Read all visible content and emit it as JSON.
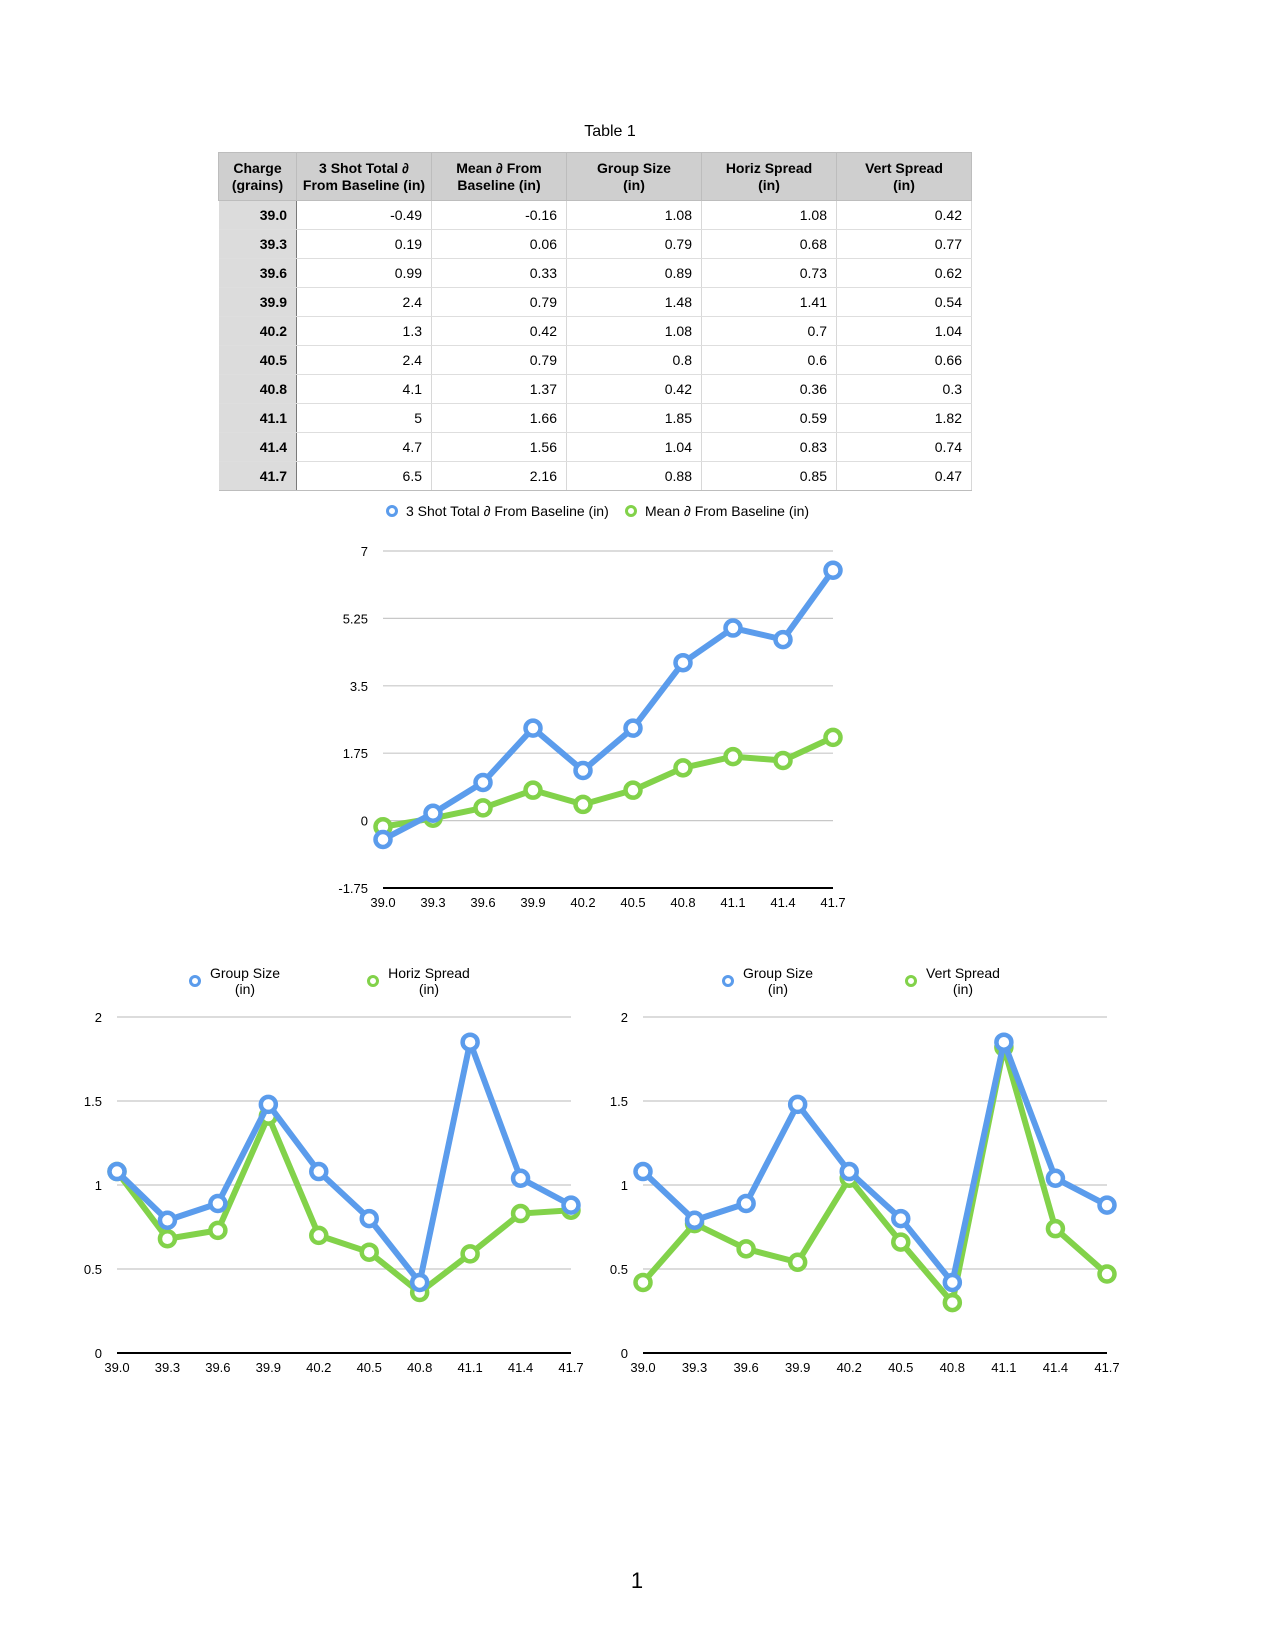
{
  "table": {
    "title": "Table 1",
    "columns": [
      "Charge\n(grains)",
      "3 Shot Total ∂\nFrom Baseline (in)",
      "Mean ∂ From\nBaseline (in)",
      "Group Size\n(in)",
      "Horiz Spread\n(in)",
      "Vert Spread\n(in)"
    ],
    "rows": [
      [
        "39.0",
        "-0.49",
        "-0.16",
        "1.08",
        "1.08",
        "0.42"
      ],
      [
        "39.3",
        "0.19",
        "0.06",
        "0.79",
        "0.68",
        "0.77"
      ],
      [
        "39.6",
        "0.99",
        "0.33",
        "0.89",
        "0.73",
        "0.62"
      ],
      [
        "39.9",
        "2.4",
        "0.79",
        "1.48",
        "1.41",
        "0.54"
      ],
      [
        "40.2",
        "1.3",
        "0.42",
        "1.08",
        "0.7",
        "1.04"
      ],
      [
        "40.5",
        "2.4",
        "0.79",
        "0.8",
        "0.6",
        "0.66"
      ],
      [
        "40.8",
        "4.1",
        "1.37",
        "0.42",
        "0.36",
        "0.3"
      ],
      [
        "41.1",
        "5",
        "1.66",
        "1.85",
        "0.59",
        "1.82"
      ],
      [
        "41.4",
        "4.7",
        "1.56",
        "1.04",
        "0.83",
        "0.74"
      ],
      [
        "41.7",
        "6.5",
        "2.16",
        "0.88",
        "0.85",
        "0.47"
      ]
    ]
  },
  "colors": {
    "blue": "#5b9cec",
    "green": "#82d24a",
    "grid": "#c8c8c8",
    "axis": "#000000"
  },
  "chart_data": [
    {
      "type": "line",
      "categories": [
        "39.0",
        "39.3",
        "39.6",
        "39.9",
        "40.2",
        "40.5",
        "40.8",
        "41.1",
        "41.4",
        "41.7"
      ],
      "series": [
        {
          "name": "3 Shot Total ∂ From Baseline (in)",
          "color": "#5b9cec",
          "values": [
            -0.49,
            0.19,
            0.99,
            2.4,
            1.3,
            2.4,
            4.1,
            5,
            4.7,
            6.5
          ]
        },
        {
          "name": "Mean ∂ From Baseline (in)",
          "color": "#82d24a",
          "values": [
            -0.16,
            0.06,
            0.33,
            0.79,
            0.42,
            0.79,
            1.37,
            1.66,
            1.56,
            2.16
          ]
        }
      ],
      "ylim": [
        -1.75,
        7
      ],
      "yticks": [
        "-1.75",
        "0",
        "1.75",
        "3.5",
        "5.25",
        "7"
      ],
      "grid": true,
      "legend": "top"
    },
    {
      "type": "line",
      "categories": [
        "39.0",
        "39.3",
        "39.6",
        "39.9",
        "40.2",
        "40.5",
        "40.8",
        "41.1",
        "41.4",
        "41.7"
      ],
      "series": [
        {
          "name": "Group Size\n(in)",
          "color": "#5b9cec",
          "values": [
            1.08,
            0.79,
            0.89,
            1.48,
            1.08,
            0.8,
            0.42,
            1.85,
            1.04,
            0.88
          ]
        },
        {
          "name": "Horiz Spread\n(in)",
          "color": "#82d24a",
          "values": [
            1.08,
            0.68,
            0.73,
            1.41,
            0.7,
            0.6,
            0.36,
            0.59,
            0.83,
            0.85
          ]
        }
      ],
      "ylim": [
        0,
        2
      ],
      "yticks": [
        "0",
        "0.5",
        "1",
        "1.5",
        "2"
      ],
      "grid": true,
      "legend": "top"
    },
    {
      "type": "line",
      "categories": [
        "39.0",
        "39.3",
        "39.6",
        "39.9",
        "40.2",
        "40.5",
        "40.8",
        "41.1",
        "41.4",
        "41.7"
      ],
      "series": [
        {
          "name": "Group Size\n(in)",
          "color": "#5b9cec",
          "values": [
            1.08,
            0.79,
            0.89,
            1.48,
            1.08,
            0.8,
            0.42,
            1.85,
            1.04,
            0.88
          ]
        },
        {
          "name": "Vert Spread\n(in)",
          "color": "#82d24a",
          "values": [
            0.42,
            0.77,
            0.62,
            0.54,
            1.04,
            0.66,
            0.3,
            1.82,
            0.74,
            0.47
          ]
        }
      ],
      "ylim": [
        0,
        2
      ],
      "yticks": [
        "0",
        "0.5",
        "1",
        "1.5",
        "2"
      ],
      "grid": true,
      "legend": "top"
    }
  ],
  "page_number": "1"
}
